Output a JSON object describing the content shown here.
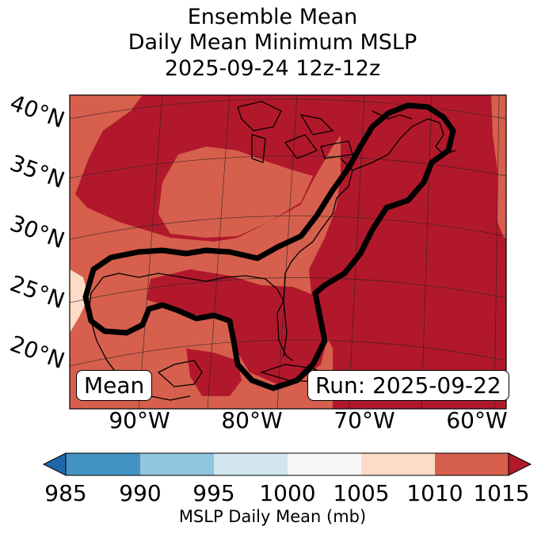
{
  "title": {
    "line1": "Ensemble Mean",
    "line2": "Daily Mean Minimum MSLP",
    "line3": "2025-09-24 12z-12z"
  },
  "map": {
    "latitude_labels": [
      "40°N",
      "35°N",
      "30°N",
      "25°N",
      "20°N"
    ],
    "longitude_labels": [
      "90°W",
      "80°W",
      "70°W",
      "60°W"
    ],
    "box_left": "Mean",
    "box_right": "Run: 2025-09-22",
    "contour_value_mb": 1010
  },
  "colorbar": {
    "ticks": [
      "985",
      "990",
      "995",
      "1000",
      "1005",
      "1010",
      "1015"
    ],
    "label": "MSLP Daily Mean (mb)",
    "colors": [
      "#2166ac",
      "#4393c3",
      "#92c5de",
      "#d1e5f0",
      "#f7f7f7",
      "#fddbc7",
      "#d6604d",
      "#b2182b"
    ],
    "bins": [
      {
        "range": "<985",
        "color": "#2166ac"
      },
      {
        "range": "985-990",
        "color": "#4393c3"
      },
      {
        "range": "990-995",
        "color": "#92c5de"
      },
      {
        "range": "995-1000",
        "color": "#d1e5f0"
      },
      {
        "range": "1000-1005",
        "color": "#f7f7f7"
      },
      {
        "range": "1005-1010",
        "color": "#fddbc7"
      },
      {
        "range": "1010-1015",
        "color": "#d6604d"
      },
      {
        "range": ">1015",
        "color": "#b2182b"
      }
    ]
  }
}
